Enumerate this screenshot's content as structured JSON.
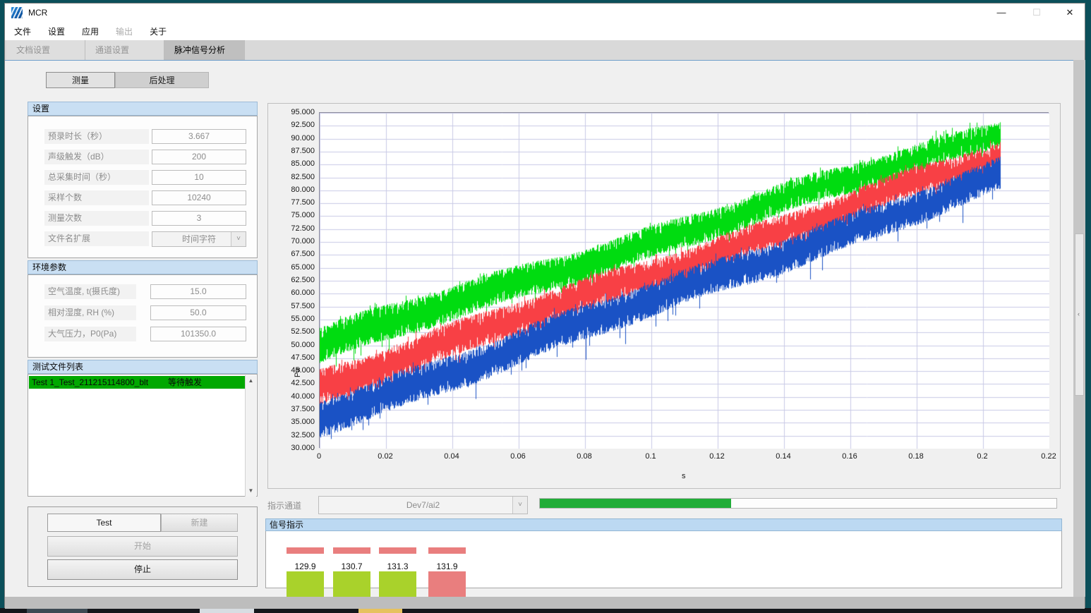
{
  "window": {
    "title": "MCR"
  },
  "titlebar": {
    "minimize": "—",
    "maximize": "☐",
    "close": "✕"
  },
  "menu": {
    "items": [
      {
        "label": "文件",
        "enabled": true
      },
      {
        "label": "设置",
        "enabled": true
      },
      {
        "label": "应用",
        "enabled": true
      },
      {
        "label": "输出",
        "enabled": false
      },
      {
        "label": "关于",
        "enabled": true
      }
    ]
  },
  "tabs": [
    {
      "label": "文档设置",
      "active": false
    },
    {
      "label": "通道设置",
      "active": false
    },
    {
      "label": "脉冲信号分析",
      "active": true
    }
  ],
  "subtabs": {
    "measure": "测量",
    "post": "后处理"
  },
  "settings_group": {
    "title": "设置",
    "fields": [
      {
        "label": "预录时长（秒）",
        "value": "3.667"
      },
      {
        "label": "声级触发（dB）",
        "value": "200"
      },
      {
        "label": "总采集时间（秒）",
        "value": "10"
      },
      {
        "label": "采样个数",
        "value": "10240"
      },
      {
        "label": "测量次数",
        "value": "3"
      }
    ],
    "combo_field": {
      "label": "文件名扩展",
      "value": "时间字符"
    }
  },
  "env_group": {
    "title": "环境参数",
    "fields": [
      {
        "label": "空气温度, t(摄氏度)",
        "value": "15.0"
      },
      {
        "label": "相对湿度, RH (%)",
        "value": "50.0"
      },
      {
        "label": "大气压力，P0(Pa)",
        "value": "101350.0"
      }
    ]
  },
  "file_list_group": {
    "title": "测试文件列表",
    "rows": [
      {
        "name": "Test 1_Test_211215114800_blt",
        "status": "等待触发"
      }
    ],
    "row_color": "#00a800"
  },
  "controls": {
    "test_value": "Test",
    "new_label": "新建",
    "start_label": "开始",
    "stop_label": "停止"
  },
  "indicator_row": {
    "label": "指示通道",
    "channel": "Dev7/ai2",
    "progress_percent": 37,
    "progress_color": "#21ad38"
  },
  "signal_panel": {
    "title": "信号指示",
    "indicators": [
      {
        "value": "129.9",
        "state": "lime"
      },
      {
        "value": "130.7",
        "state": "lime"
      },
      {
        "value": "131.3",
        "state": "lime"
      },
      {
        "value": "131.9",
        "state": "salmon"
      }
    ],
    "colors": {
      "lime": "#a9d22b",
      "salmon": "#e97e7e"
    }
  },
  "icons": {
    "chevron_down": "˅",
    "scroll_up": "▲",
    "scroll_down": "▼",
    "splitter_collapse": "‹"
  },
  "chart_data": {
    "type": "line",
    "title": "",
    "xlabel": "s",
    "ylabel": "Pa",
    "xlim": [
      0,
      0.22
    ],
    "ylim": [
      30,
      95
    ],
    "xticks": [
      "0",
      "0.02",
      "0.04",
      "0.06",
      "0.08",
      "0.1",
      "0.12",
      "0.14",
      "0.16",
      "0.18",
      "0.2",
      "0.22"
    ],
    "yticks": [
      "95.000",
      "92.500",
      "90.000",
      "87.500",
      "85.000",
      "82.500",
      "80.000",
      "77.500",
      "75.000",
      "72.500",
      "70.000",
      "67.500",
      "65.000",
      "62.500",
      "60.000",
      "57.500",
      "55.000",
      "52.500",
      "50.000",
      "47.500",
      "45.000",
      "42.500",
      "40.000",
      "37.500",
      "35.000",
      "32.500",
      "30.000"
    ],
    "grid": true,
    "grid_color": "#c9cae6",
    "plot_bg": "#ffffff",
    "legend": "none",
    "x_data_start": 0,
    "x_data_end": 0.205,
    "series": [
      {
        "name": "channel-1-green",
        "color": "#00dc10",
        "band_start": [
          46.5,
          53.5
        ],
        "band_end": [
          88.5,
          93.8
        ]
      },
      {
        "name": "channel-2-red",
        "color": "#f84045",
        "band_start": [
          38.5,
          45.5
        ],
        "band_end": [
          84.0,
          89.5
        ]
      },
      {
        "name": "channel-3-blue",
        "color": "#1a52c5",
        "band_start": [
          32.5,
          39.5
        ],
        "band_end": [
          79.5,
          85.8
        ]
      }
    ]
  }
}
